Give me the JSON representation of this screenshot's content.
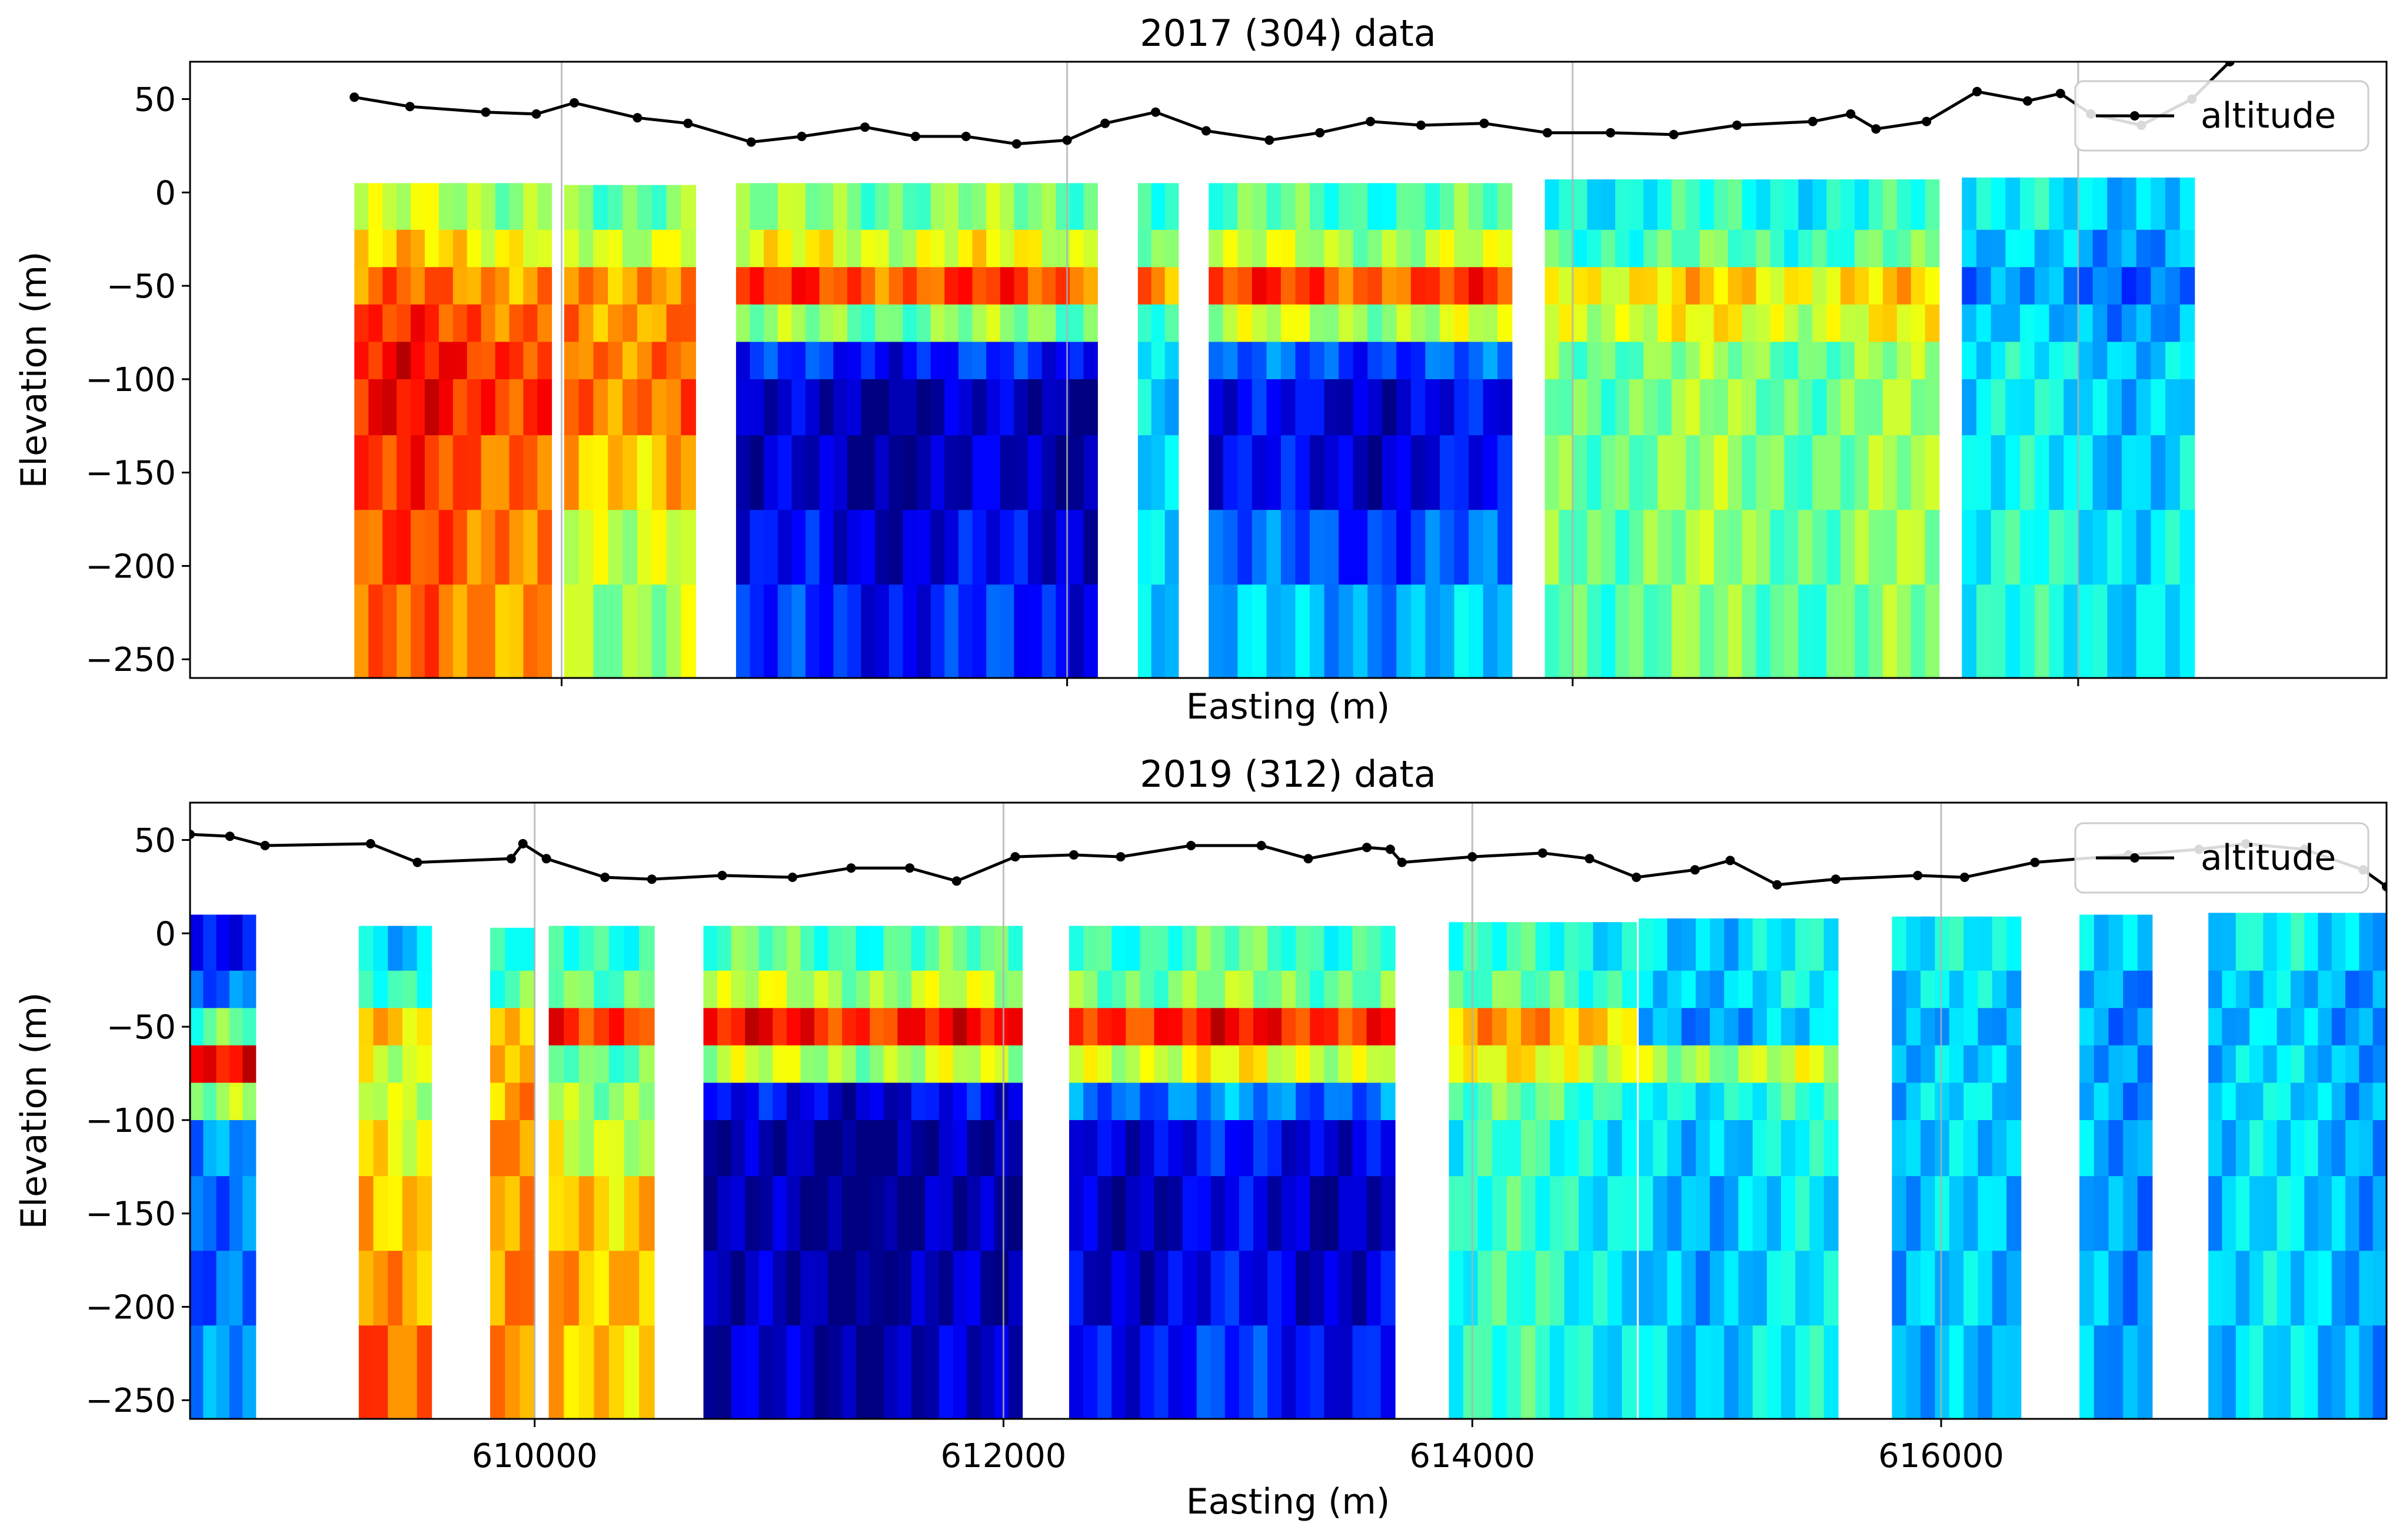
{
  "chart_data": [
    {
      "type": "heatmap",
      "title": "2017 (304) data",
      "xlabel": "Easting (m)",
      "ylabel": "Elevation (m)",
      "xlim": [
        608530,
        617220
      ],
      "ylim": [
        -260,
        70
      ],
      "xticks": [
        610000,
        612000,
        614000,
        616000
      ],
      "xtick_labels_shown": false,
      "yticks": [
        -250,
        -200,
        -150,
        -100,
        -50,
        0,
        50
      ],
      "ytick_labels": [
        "−250",
        "−200",
        "−150",
        "−100",
        "−50",
        "0",
        "50"
      ],
      "grid": "vertical",
      "legend": {
        "position": "top-right",
        "entries": [
          "altitude"
        ]
      },
      "colormap": "jet",
      "sections": [
        {
          "x0": 609180,
          "x1": 609960,
          "top": 5,
          "profile": [
            0.55,
            0.65,
            0.75,
            0.8,
            0.85,
            0.85,
            0.8,
            0.78,
            0.75
          ]
        },
        {
          "x0": 610010,
          "x1": 610530,
          "top": 4,
          "profile": [
            0.5,
            0.6,
            0.75,
            0.75,
            0.78,
            0.78,
            0.7,
            0.6,
            0.55
          ]
        },
        {
          "x0": 610690,
          "x1": 612120,
          "top": 5,
          "profile": [
            0.5,
            0.6,
            0.8,
            0.5,
            0.15,
            0.05,
            0.05,
            0.1,
            0.15
          ]
        },
        {
          "x0": 612280,
          "x1": 612440,
          "top": 5,
          "profile": [
            0.45,
            0.5,
            0.75,
            0.45,
            0.35,
            0.35,
            0.35,
            0.35,
            0.35
          ]
        },
        {
          "x0": 612560,
          "x1": 613760,
          "top": 5,
          "profile": [
            0.45,
            0.55,
            0.8,
            0.55,
            0.2,
            0.1,
            0.1,
            0.2,
            0.3
          ]
        },
        {
          "x0": 613890,
          "x1": 615450,
          "top": 7,
          "profile": [
            0.4,
            0.45,
            0.65,
            0.6,
            0.5,
            0.5,
            0.5,
            0.5,
            0.48
          ]
        },
        {
          "x0": 615540,
          "x1": 616460,
          "top": 8,
          "profile": [
            0.35,
            0.3,
            0.25,
            0.3,
            0.35,
            0.35,
            0.35,
            0.38,
            0.38
          ]
        }
      ],
      "altitude": {
        "name": "altitude",
        "x": [
          609180,
          609400,
          609700,
          609900,
          610050,
          610300,
          610500,
          610750,
          610950,
          611200,
          611400,
          611600,
          611800,
          612000,
          612150,
          612350,
          612550,
          612800,
          613000,
          613200,
          613400,
          613650,
          613900,
          614150,
          614400,
          614650,
          614950,
          615100,
          615200,
          615400,
          615600,
          615800,
          615930,
          616050,
          616250,
          616450,
          616600
        ],
        "y": [
          51,
          46,
          43,
          42,
          48,
          40,
          37,
          27,
          30,
          35,
          30,
          30,
          26,
          28,
          37,
          43,
          33,
          28,
          32,
          38,
          36,
          37,
          32,
          32,
          31,
          36,
          38,
          42,
          34,
          38,
          54,
          49,
          53,
          42,
          36,
          50,
          70
        ]
      }
    },
    {
      "type": "heatmap",
      "title": "2019 (312) data",
      "xlabel": "Easting (m)",
      "ylabel": "Elevation (m)",
      "xlim": [
        608530,
        617900
      ],
      "ylim": [
        -260,
        70
      ],
      "xticks": [
        610000,
        612000,
        614000,
        616000
      ],
      "xtick_labels": [
        "610000",
        "612000",
        "614000",
        "616000"
      ],
      "yticks": [
        -250,
        -200,
        -150,
        -100,
        -50,
        0,
        50
      ],
      "ytick_labels": [
        "−250",
        "−200",
        "−150",
        "−100",
        "−50",
        "0",
        "50"
      ],
      "grid": "vertical",
      "legend": {
        "position": "top-right",
        "entries": [
          "altitude"
        ]
      },
      "colormap": "jet",
      "sections": [
        {
          "x0": 608530,
          "x1": 608810,
          "top": 10,
          "profile": [
            0.1,
            0.2,
            0.45,
            0.85,
            0.5,
            0.25,
            0.2,
            0.2,
            0.25
          ]
        },
        {
          "x0": 609250,
          "x1": 609560,
          "top": 4,
          "profile": [
            0.35,
            0.45,
            0.7,
            0.6,
            0.6,
            0.65,
            0.7,
            0.75,
            0.8
          ]
        },
        {
          "x0": 609810,
          "x1": 610000,
          "top": 3,
          "profile": [
            0.4,
            0.45,
            0.65,
            0.7,
            0.7,
            0.72,
            0.72,
            0.72,
            0.72
          ]
        },
        {
          "x0": 610060,
          "x1": 610510,
          "top": 4,
          "profile": [
            0.45,
            0.5,
            0.85,
            0.5,
            0.55,
            0.6,
            0.7,
            0.72,
            0.7
          ]
        },
        {
          "x0": 610720,
          "x1": 612080,
          "top": 4,
          "profile": [
            0.45,
            0.55,
            0.85,
            0.55,
            0.1,
            0.02,
            0.02,
            0.03,
            0.05
          ]
        },
        {
          "x0": 612280,
          "x1": 613670,
          "top": 4,
          "profile": [
            0.45,
            0.5,
            0.85,
            0.6,
            0.25,
            0.12,
            0.08,
            0.1,
            0.15
          ]
        },
        {
          "x0": 613900,
          "x1": 614700,
          "top": 6,
          "profile": [
            0.4,
            0.45,
            0.7,
            0.6,
            0.45,
            0.4,
            0.4,
            0.4,
            0.4
          ]
        },
        {
          "x0": 614710,
          "x1": 615560,
          "top": 8,
          "profile": [
            0.35,
            0.35,
            0.3,
            0.55,
            0.4,
            0.35,
            0.33,
            0.33,
            0.35
          ]
        },
        {
          "x0": 615790,
          "x1": 616340,
          "top": 9,
          "profile": [
            0.35,
            0.33,
            0.28,
            0.3,
            0.32,
            0.3,
            0.3,
            0.3,
            0.28
          ]
        },
        {
          "x0": 616590,
          "x1": 616900,
          "top": 10,
          "profile": [
            0.35,
            0.3,
            0.28,
            0.3,
            0.3,
            0.3,
            0.3,
            0.3,
            0.3
          ]
        },
        {
          "x0": 617140,
          "x1": 617900,
          "top": 11,
          "profile": [
            0.35,
            0.3,
            0.3,
            0.32,
            0.32,
            0.32,
            0.32,
            0.32,
            0.32
          ]
        }
      ],
      "altitude": {
        "name": "altitude",
        "x": [
          608530,
          608700,
          608850,
          609300,
          609500,
          609900,
          609950,
          610050,
          610300,
          610500,
          610800,
          611100,
          611350,
          611600,
          611800,
          612050,
          612300,
          612500,
          612800,
          613100,
          613300,
          613550,
          613650,
          613700,
          614000,
          614300,
          614500,
          614700,
          614950,
          615100,
          615300,
          615550,
          615900,
          616100,
          616400,
          616800,
          617100,
          617300,
          617550,
          617800,
          617900
        ],
        "y": [
          53,
          52,
          47,
          48,
          38,
          40,
          48,
          40,
          30,
          29,
          31,
          30,
          35,
          35,
          28,
          41,
          42,
          41,
          47,
          47,
          40,
          46,
          45,
          38,
          41,
          43,
          40,
          30,
          34,
          39,
          26,
          29,
          31,
          30,
          38,
          42,
          45,
          48,
          45,
          34,
          25
        ]
      }
    }
  ]
}
